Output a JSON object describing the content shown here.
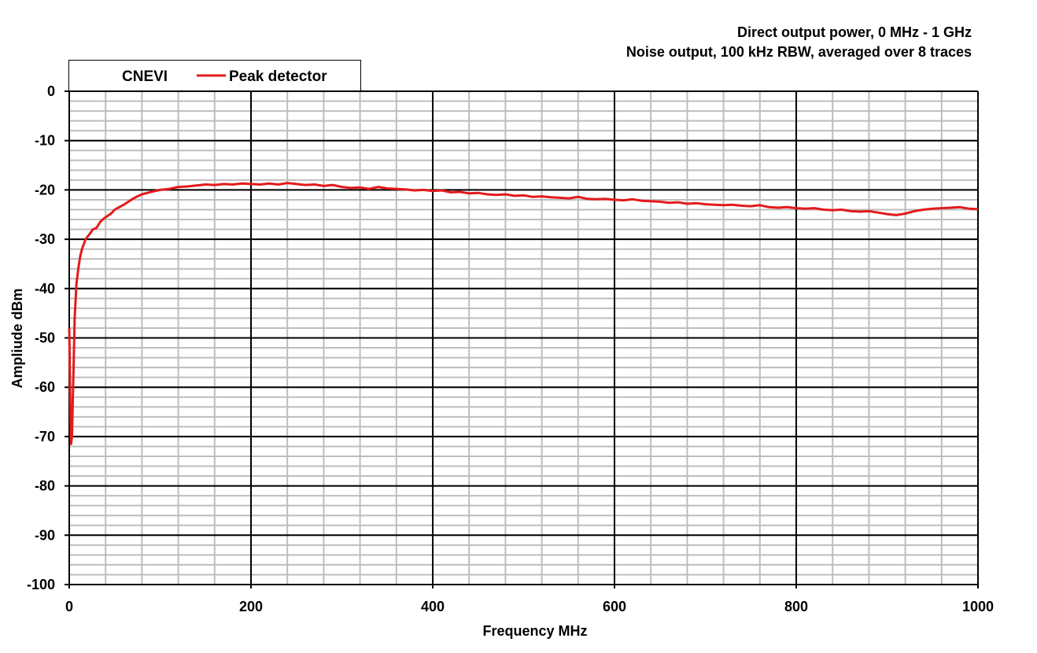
{
  "chart_data": {
    "type": "line",
    "title_lines": [
      "Direct output power, 0 MHz - 1 GHz",
      "Noise output, 100 kHz RBW, averaged over 8 traces"
    ],
    "xlabel": "Frequency  MHz",
    "ylabel": "Ampliude dBm",
    "xlim": [
      0,
      1000
    ],
    "ylim": [
      -100,
      0
    ],
    "x_ticks": [
      0,
      200,
      400,
      600,
      800,
      1000
    ],
    "y_ticks": [
      0,
      -10,
      -20,
      -30,
      -40,
      -50,
      -60,
      -70,
      -80,
      -90,
      -100
    ],
    "x_minor_step": 40,
    "y_minor_step": 2,
    "grid": true,
    "legend": {
      "placement": "top-left",
      "title": "CNEVI",
      "entries": [
        "Peak detector"
      ]
    },
    "series": [
      {
        "name": "Peak detector",
        "color": "#e31a1c",
        "x": [
          0,
          1,
          2,
          3,
          4,
          5,
          6,
          8,
          10,
          12,
          14,
          16,
          18,
          20,
          23,
          26,
          30,
          34,
          38,
          42,
          46,
          50,
          55,
          60,
          65,
          70,
          75,
          80,
          90,
          100,
          110,
          120,
          130,
          140,
          150,
          160,
          170,
          180,
          190,
          200,
          210,
          220,
          230,
          240,
          250,
          260,
          270,
          280,
          290,
          300,
          310,
          320,
          330,
          340,
          350,
          360,
          370,
          380,
          390,
          400,
          410,
          420,
          430,
          440,
          450,
          460,
          470,
          480,
          490,
          500,
          510,
          520,
          530,
          540,
          550,
          560,
          570,
          580,
          590,
          600,
          610,
          620,
          630,
          640,
          650,
          660,
          670,
          680,
          690,
          700,
          710,
          720,
          730,
          740,
          750,
          760,
          770,
          780,
          790,
          800,
          810,
          820,
          830,
          840,
          850,
          860,
          870,
          880,
          890,
          900,
          910,
          920,
          930,
          940,
          950,
          960,
          970,
          980,
          990,
          1000
        ],
        "y": [
          -48,
          -62,
          -71.5,
          -70,
          -62,
          -54,
          -46,
          -39,
          -36,
          -33.5,
          -32,
          -31,
          -30,
          -29.5,
          -28.8,
          -28,
          -27.7,
          -26.5,
          -25.8,
          -25.3,
          -24.8,
          -24,
          -23.5,
          -23,
          -22.4,
          -21.8,
          -21.3,
          -20.9,
          -20.4,
          -20,
          -19.8,
          -19.4,
          -19.3,
          -19.1,
          -18.9,
          -19,
          -18.8,
          -18.9,
          -18.7,
          -18.8,
          -18.9,
          -18.7,
          -18.9,
          -18.6,
          -18.8,
          -19.0,
          -18.9,
          -19.2,
          -19.0,
          -19.4,
          -19.6,
          -19.5,
          -19.8,
          -19.4,
          -19.7,
          -19.8,
          -19.9,
          -20.1,
          -20.0,
          -20.2,
          -20.1,
          -20.5,
          -20.4,
          -20.7,
          -20.6,
          -20.9,
          -21.0,
          -20.9,
          -21.2,
          -21.1,
          -21.4,
          -21.3,
          -21.5,
          -21.6,
          -21.7,
          -21.4,
          -21.8,
          -21.9,
          -21.8,
          -22.0,
          -22.1,
          -21.9,
          -22.2,
          -22.3,
          -22.4,
          -22.6,
          -22.5,
          -22.8,
          -22.7,
          -22.9,
          -23.0,
          -23.1,
          -23.0,
          -23.2,
          -23.3,
          -23.1,
          -23.5,
          -23.6,
          -23.5,
          -23.7,
          -23.8,
          -23.7,
          -24.0,
          -24.1,
          -24.0,
          -24.3,
          -24.4,
          -24.3,
          -24.6,
          -24.9,
          -25.1,
          -24.8,
          -24.3,
          -24.0,
          -23.8,
          -23.7,
          -23.6,
          -23.5,
          -23.8,
          -23.9
        ]
      }
    ]
  }
}
